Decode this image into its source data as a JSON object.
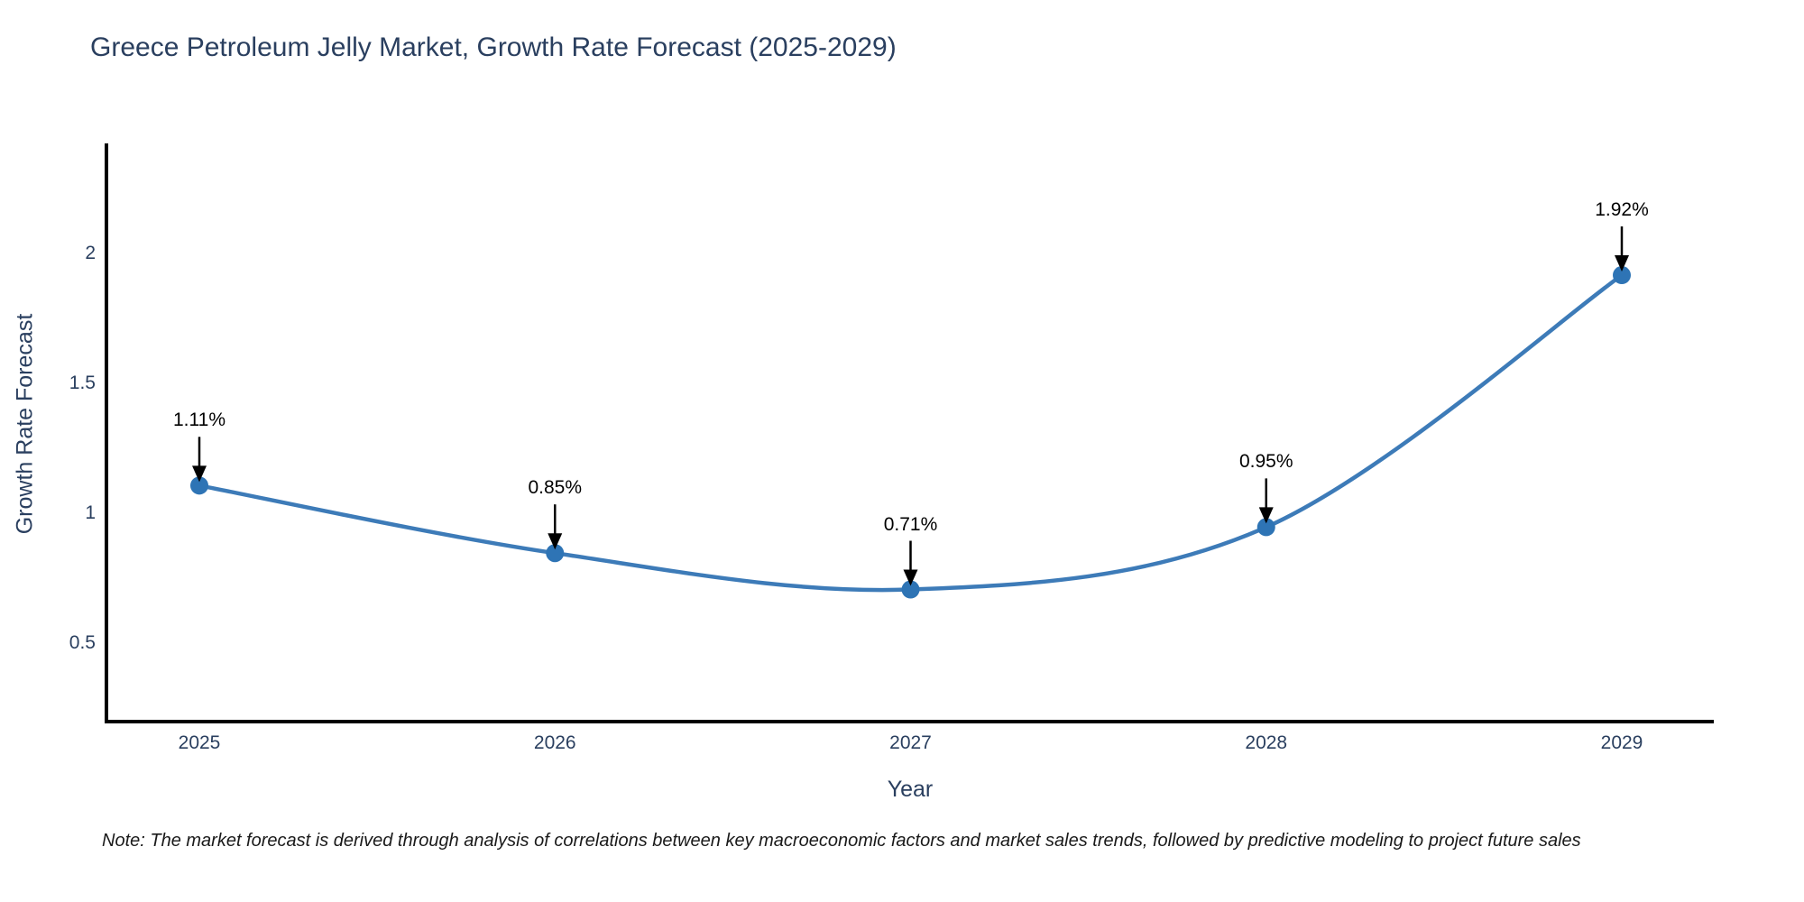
{
  "chart": {
    "title": "Greece Petroleum Jelly Market, Growth Rate Forecast (2025-2029)",
    "note": "Note: The market forecast is derived through analysis of correlations between key macroeconomic factors and market sales trends, followed by predictive modeling to project future sales"
  },
  "chart_data": {
    "type": "line",
    "title": "Greece Petroleum Jelly Market, Growth Rate Forecast (2025-2029)",
    "x": [
      2025,
      2026,
      2027,
      2028,
      2029
    ],
    "y": [
      1.11,
      0.85,
      0.71,
      0.95,
      1.92
    ],
    "point_labels": [
      "1.11%",
      "0.85%",
      "0.71%",
      "0.95%",
      "1.92%"
    ],
    "xlabel": "Year",
    "ylabel": "Growth Rate Forecast",
    "xticks": [
      "2025",
      "2026",
      "2027",
      "2028",
      "2029"
    ],
    "yticks": [
      0.5,
      1,
      1.5,
      2
    ],
    "ylim": [
      0.2,
      2.44
    ],
    "line_shape": "spline",
    "grid": false,
    "legend": "none",
    "colors": {
      "line": "#3d7bb8",
      "marker": "#2e74b5",
      "arrow": "#000000",
      "axis": "#000000",
      "title_text": "#2a3f5f",
      "tick_text": "#2a3f5f",
      "annotation_text": "#000000",
      "note_text": "#1a1a1a",
      "background": "#ffffff"
    }
  }
}
